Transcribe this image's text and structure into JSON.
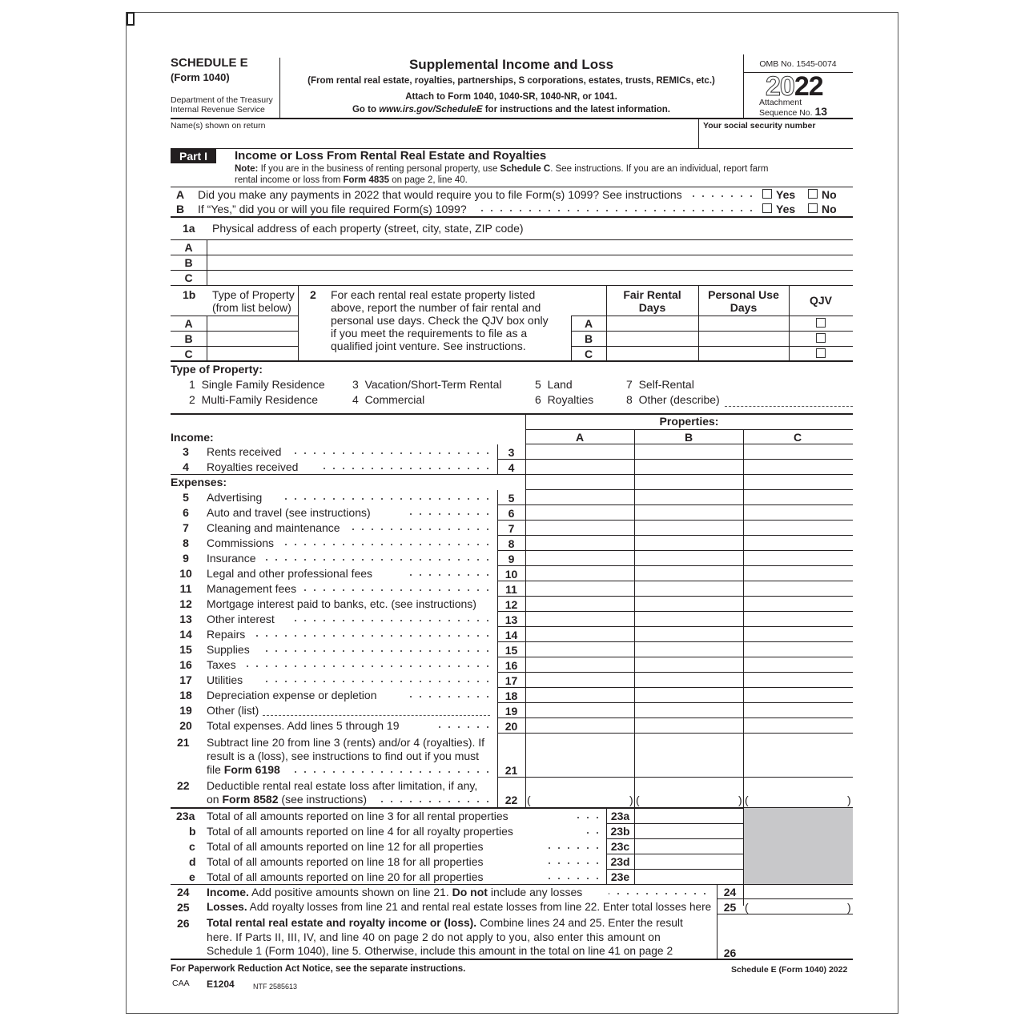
{
  "header": {
    "schedule": "SCHEDULE E",
    "form": "(Form 1040)",
    "dept1": "Department of the Treasury",
    "dept2": "Internal Revenue Service",
    "title": "Supplemental Income and Loss",
    "subtitle": "(From rental real estate, royalties, partnerships, S corporations, estates, trusts, REMICs, etc.)",
    "attach": "Attach to Form 1040, 1040-SR, 1040-NR, or 1041.",
    "goto_pre": "Go to ",
    "goto_url": "www.irs.gov/ScheduleE",
    "goto_post": " for instructions and the latest information.",
    "omb": "OMB No. 1545-0074",
    "year_prefix": "20",
    "year_suffix": "22",
    "attachment": "Attachment",
    "sequence": "Sequence No.",
    "sequence_no": "13",
    "names_label": "Name(s) shown on return",
    "ssn_label": "Your social security number"
  },
  "part1": {
    "badge": "Part I",
    "title": "Income or Loss From Rental Real Estate and Royalties",
    "note_bold": "Note:",
    "note1": " If you are in the business of renting personal property, use ",
    "note_sched": "Schedule C",
    "note2": ". See instructions. If you are an individual, report farm",
    "note3": "rental income or loss from ",
    "note_form": "Form 4835",
    "note4": " on page 2, line 40.",
    "qA": {
      "letter": "A",
      "text": "Did you make any payments in 2022 that would require you to file Form(s) 1099? See instructions",
      "yes": "Yes",
      "no": "No"
    },
    "qB": {
      "letter": "B",
      "text": "If “Yes,” did you or will you file required Form(s) 1099?",
      "yes": "Yes",
      "no": "No"
    },
    "l1a": {
      "num": "1a",
      "text": "Physical address of each property (street, city, state, ZIP code)"
    },
    "letters": [
      "A",
      "B",
      "C"
    ],
    "l1b": {
      "num": "1b",
      "text1": "Type of Property",
      "text2": "(from list below)"
    },
    "l2": {
      "num": "2",
      "lines": [
        "For each rental real estate property listed",
        "above, report the number of fair rental and",
        "personal use days. Check the QJV box only",
        "if you meet the requirements to file as a",
        "qualified joint venture. See instructions."
      ],
      "fair1": "Fair Rental",
      "fair2": "Days",
      "pers1": "Personal Use",
      "pers2": "Days",
      "qjv": "QJV"
    },
    "types_title": "Type of Property:",
    "types": [
      "1  Single Family Residence",
      "2  Multi-Family Residence",
      "3  Vacation/Short-Term Rental",
      "4  Commercial",
      "5  Land",
      "6  Royalties",
      "7  Self-Rental",
      "8  Other (describe)"
    ],
    "properties": "Properties:",
    "income_label": "Income:",
    "expenses_label": "Expenses:",
    "lines": [
      {
        "num": "3",
        "label": "Rents received"
      },
      {
        "num": "4",
        "label": "Royalties received"
      },
      {
        "num": "",
        "label": "Expenses:"
      },
      {
        "num": "5",
        "label": "Advertising"
      },
      {
        "num": "6",
        "label": "Auto and travel (see instructions)"
      },
      {
        "num": "7",
        "label": "Cleaning and maintenance"
      },
      {
        "num": "8",
        "label": "Commissions"
      },
      {
        "num": "9",
        "label": "Insurance"
      },
      {
        "num": "10",
        "label": "Legal and other professional fees"
      },
      {
        "num": "11",
        "label": "Management fees"
      },
      {
        "num": "12",
        "label": "Mortgage interest paid to banks, etc. (see instructions)"
      },
      {
        "num": "13",
        "label": "Other interest"
      },
      {
        "num": "14",
        "label": "Repairs"
      },
      {
        "num": "15",
        "label": "Supplies"
      },
      {
        "num": "16",
        "label": "Taxes"
      },
      {
        "num": "17",
        "label": "Utilities"
      },
      {
        "num": "18",
        "label": "Depreciation expense or depletion"
      },
      {
        "num": "19",
        "label": "Other (list)"
      },
      {
        "num": "20",
        "label": "Total expenses. Add lines 5 through 19"
      }
    ],
    "l21": {
      "num": "21",
      "line1": "Subtract line 20 from line 3 (rents) and/or 4 (royalties). If",
      "line2": "result is a (loss), see instructions to find out if you must",
      "line3_pre": "file ",
      "line3_bold": "Form 6198"
    },
    "l22": {
      "num": "22",
      "line1": "Deductible rental real estate loss after limitation, if any,",
      "line2_pre": "on ",
      "line2_bold": "Form 8582",
      "line2_post": " (see instructions)"
    },
    "l23": [
      {
        "num": "23a",
        "box": "23a",
        "label": "Total of all amounts reported on line 3 for all rental properties"
      },
      {
        "num": "b",
        "box": "23b",
        "label": "Total of all amounts reported on line 4 for all royalty properties"
      },
      {
        "num": "c",
        "box": "23c",
        "label": "Total of all amounts reported on line 12 for all properties"
      },
      {
        "num": "d",
        "box": "23d",
        "label": "Total of all amounts reported on line 18 for all properties"
      },
      {
        "num": "e",
        "box": "23e",
        "label": "Total of all amounts reported on line 20 for all properties"
      }
    ],
    "l24": {
      "num": "24",
      "bold1": "Income.",
      "text1": " Add positive amounts shown on line 21. ",
      "bold2": "Do not",
      "text2": " include any losses"
    },
    "l25": {
      "num": "25",
      "bold": "Losses.",
      "text": " Add royalty losses from line 21 and rental real estate losses from line 22. Enter total losses here"
    },
    "l26": {
      "num": "26",
      "bold": "Total rental real estate and royalty income or (loss).",
      "line1": " Combine lines 24 and 25. Enter the result",
      "line2": "here. If Parts II, III, IV, and line 40 on page 2 do not apply to you, also enter this amount on",
      "line3": "Schedule 1 (Form 1040), line 5. Otherwise, include this amount in the total on line 41 on page 2"
    }
  },
  "footer": {
    "notice": "For Paperwork Reduction Act Notice, see the separate instructions.",
    "form_id": "Schedule E (Form 1040) 2022",
    "caa": "CAA",
    "code": "E1204",
    "ntf": "NTF 2585613"
  }
}
